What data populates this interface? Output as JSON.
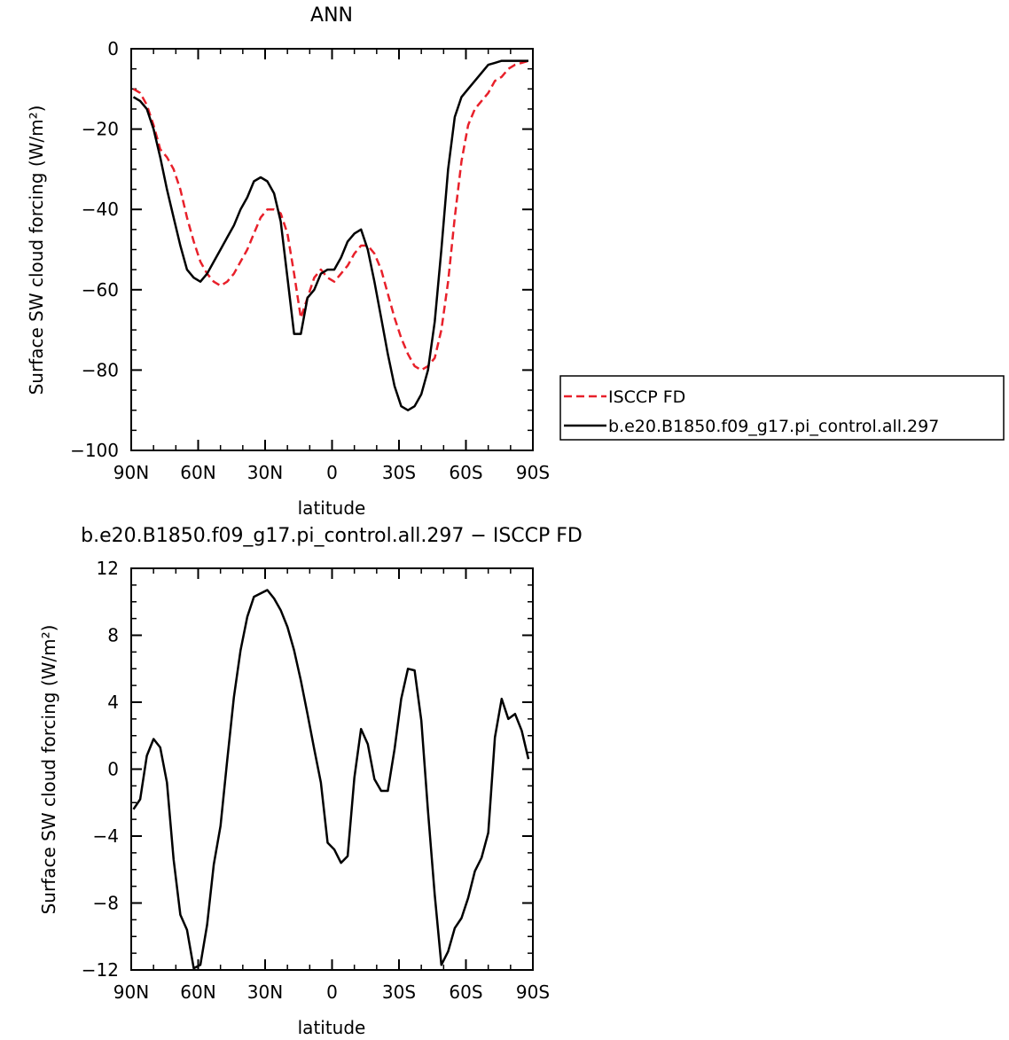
{
  "chart_data": [
    {
      "type": "line",
      "title": "ANN",
      "xlabel": "latitude",
      "ylabel": "Surface SW cloud forcing (W/m²)",
      "xlim": [
        90,
        -90
      ],
      "ylim": [
        -100,
        0
      ],
      "x_ticks": [
        {
          "value": 90,
          "label": "90N"
        },
        {
          "value": 60,
          "label": "60N"
        },
        {
          "value": 30,
          "label": "30N"
        },
        {
          "value": 0,
          "label": "0"
        },
        {
          "value": -30,
          "label": "30S"
        },
        {
          "value": -60,
          "label": "60S"
        },
        {
          "value": -90,
          "label": "90S"
        }
      ],
      "y_ticks": [
        {
          "value": 0,
          "label": "0"
        },
        {
          "value": -20,
          "label": "−20"
        },
        {
          "value": -40,
          "label": "−40"
        },
        {
          "value": -60,
          "label": "−60"
        },
        {
          "value": -80,
          "label": "−80"
        },
        {
          "value": -100,
          "label": "−100"
        }
      ],
      "grid": false,
      "legend_position": "right",
      "series": [
        {
          "name": "ISCCP FD",
          "color": "#e8202a",
          "dash": "dashed",
          "x": [
            89,
            86,
            83,
            80,
            77,
            74,
            71,
            68,
            65,
            62,
            59,
            56,
            53,
            50,
            47,
            44,
            41,
            38,
            35,
            32,
            29,
            26,
            23,
            20,
            17,
            14,
            11,
            8,
            5,
            2,
            -1,
            -4,
            -7,
            -10,
            -13,
            -16,
            -19,
            -22,
            -25,
            -28,
            -31,
            -34,
            -37,
            -40,
            -43,
            -46,
            -49,
            -52,
            -55,
            -58,
            -61,
            -64,
            -67,
            -70,
            -73,
            -76,
            -79,
            -82,
            -85,
            -88
          ],
          "y": [
            -10,
            -11,
            -14,
            -19,
            -25,
            -27,
            -30,
            -35,
            -42,
            -48,
            -53,
            -56,
            -58,
            -59,
            -58,
            -56,
            -53,
            -50,
            -46,
            -42,
            -40,
            -40,
            -41,
            -46,
            -56,
            -67,
            -62,
            -57,
            -55,
            -57,
            -58,
            -56,
            -54,
            -51,
            -49,
            -49,
            -51,
            -55,
            -61,
            -67,
            -72,
            -76,
            -79,
            -80,
            -79,
            -77,
            -70,
            -58,
            -42,
            -28,
            -19,
            -15,
            -13,
            -11,
            -8,
            -7,
            -5,
            -4,
            -3.5,
            -3
          ]
        },
        {
          "name": "b.e20.B1850.f09_g17.pi_control.all.297",
          "color": "#000000",
          "dash": "solid",
          "x": [
            89,
            86,
            83,
            80,
            77,
            74,
            71,
            68,
            65,
            62,
            59,
            56,
            53,
            50,
            47,
            44,
            41,
            38,
            35,
            32,
            29,
            26,
            23,
            20,
            17,
            14,
            11,
            8,
            5,
            2,
            -1,
            -4,
            -7,
            -10,
            -13,
            -16,
            -19,
            -22,
            -25,
            -28,
            -31,
            -34,
            -37,
            -40,
            -43,
            -46,
            -49,
            -52,
            -55,
            -58,
            -61,
            -64,
            -67,
            -70,
            -73,
            -76,
            -79,
            -82,
            -85,
            -88
          ],
          "y": [
            -12,
            -13,
            -15,
            -20,
            -27,
            -35,
            -42,
            -49,
            -55,
            -57,
            -58,
            -56,
            -53,
            -50,
            -47,
            -44,
            -40,
            -37,
            -33,
            -32,
            -33,
            -36,
            -43,
            -57,
            -71,
            -71,
            -62,
            -60,
            -56,
            -55,
            -55,
            -52,
            -48,
            -46,
            -45,
            -50,
            -58,
            -67,
            -76,
            -84,
            -89,
            -90,
            -89,
            -86,
            -80,
            -68,
            -50,
            -30,
            -17,
            -12,
            -10,
            -8,
            -6,
            -4,
            -3.5,
            -3,
            -3,
            -3,
            -3,
            -3
          ]
        }
      ]
    },
    {
      "type": "line",
      "title": "b.e20.B1850.f09_g17.pi_control.all.297 − ISCCP FD",
      "xlabel": "latitude",
      "ylabel": "Surface SW cloud forcing (W/m²)",
      "xlim": [
        90,
        -90
      ],
      "ylim": [
        -12,
        12
      ],
      "x_ticks": [
        {
          "value": 90,
          "label": "90N"
        },
        {
          "value": 60,
          "label": "60N"
        },
        {
          "value": 30,
          "label": "30N"
        },
        {
          "value": 0,
          "label": "0"
        },
        {
          "value": -30,
          "label": "30S"
        },
        {
          "value": -60,
          "label": "60S"
        },
        {
          "value": -90,
          "label": "90S"
        }
      ],
      "y_ticks": [
        {
          "value": 12,
          "label": "12"
        },
        {
          "value": 8,
          "label": "8"
        },
        {
          "value": 4,
          "label": "4"
        },
        {
          "value": 0,
          "label": "0"
        },
        {
          "value": -4,
          "label": "−4"
        },
        {
          "value": -8,
          "label": "−8"
        },
        {
          "value": -12,
          "label": "−12"
        }
      ],
      "grid": false,
      "series": [
        {
          "color": "#000000",
          "dash": "solid",
          "x": [
            89,
            86,
            83,
            80,
            77,
            74,
            71,
            68,
            65,
            62,
            59,
            56,
            53,
            50,
            47,
            44,
            41,
            38,
            35,
            32,
            29,
            26,
            23,
            20,
            17,
            14,
            11,
            8,
            5,
            2,
            -1,
            -4,
            -7,
            -10,
            -13,
            -16,
            -19,
            -22,
            -25,
            -28,
            -31,
            -34,
            -37,
            -40,
            -43,
            -46,
            -49,
            -52,
            -55,
            -58,
            -61,
            -64,
            -67,
            -70,
            -73,
            -76,
            -79,
            -82,
            -85,
            -88
          ],
          "y": [
            -2.4,
            -1.8,
            0.8,
            1.8,
            1.3,
            -0.8,
            -5.4,
            -8.7,
            -9.6,
            -11.9,
            -11.7,
            -9.3,
            -5.7,
            -3.4,
            0.5,
            4.3,
            7.1,
            9.1,
            10.3,
            10.5,
            10.7,
            10.2,
            9.5,
            8.5,
            7.1,
            5.3,
            3.3,
            1.2,
            -0.8,
            -4.4,
            -4.8,
            -5.6,
            -5.2,
            -0.5,
            2.4,
            1.5,
            -0.6,
            -1.3,
            -1.3,
            1.2,
            4.2,
            6.0,
            5.9,
            2.9,
            -2.5,
            -7.5,
            -11.7,
            -10.9,
            -9.5,
            -8.9,
            -7.7,
            -6.1,
            -5.3,
            -3.8,
            1.9,
            4.2,
            3.0,
            3.3,
            2.3,
            0.6
          ]
        }
      ]
    }
  ]
}
